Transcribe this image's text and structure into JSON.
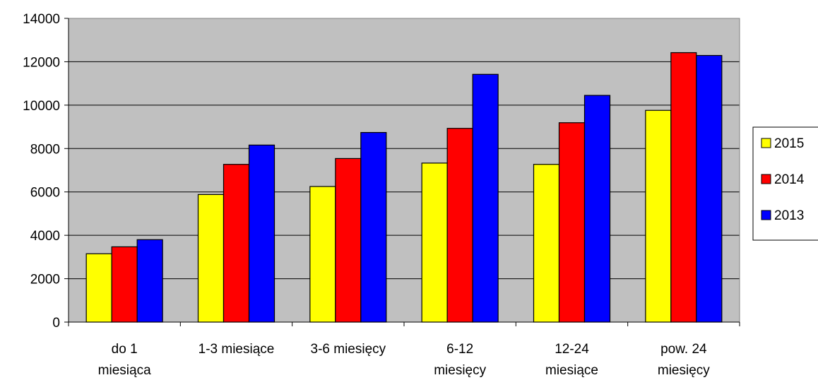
{
  "chart_data": {
    "type": "bar",
    "title": "",
    "xlabel": "",
    "ylabel": "",
    "ylim": [
      0,
      14000
    ],
    "yticks": [
      0,
      2000,
      4000,
      6000,
      8000,
      10000,
      12000,
      14000
    ],
    "grid": true,
    "legend_position": "right",
    "categories": [
      [
        "do 1",
        "miesiąca"
      ],
      [
        "1-3 miesiące"
      ],
      [
        "3-6 miesięcy"
      ],
      [
        "6-12",
        "miesięcy"
      ],
      [
        "12-24",
        "miesiące"
      ],
      [
        "pow. 24",
        "miesięcy"
      ]
    ],
    "series": [
      {
        "name": "2015",
        "color": "#ffff00",
        "values": [
          3150,
          5880,
          6250,
          7330,
          7270,
          9760
        ]
      },
      {
        "name": "2014",
        "color": "#ff0000",
        "values": [
          3470,
          7270,
          7540,
          8930,
          9190,
          12420
        ]
      },
      {
        "name": "2013",
        "color": "#0000ff",
        "values": [
          3800,
          8160,
          8740,
          11420,
          10450,
          12290
        ]
      }
    ],
    "plot_background": "#c0c0c0"
  }
}
